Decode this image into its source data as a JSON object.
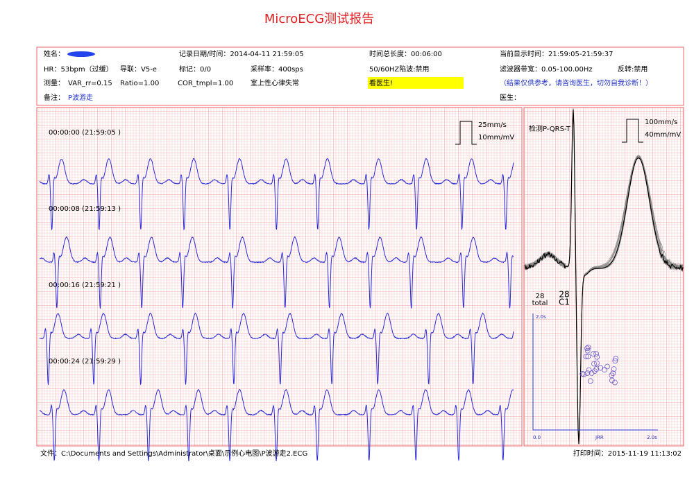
{
  "title": "MicroECG测试报告",
  "header": {
    "name_label": "姓名：",
    "record_time": "记录日期/时间：2014-04-11 21:59:05",
    "duration": "时间总长度：00:06:00",
    "display_time": "当前显示时间：21:59:05-21:59:37",
    "hr": "HR：53bpm（过缓）",
    "lead": "导联：V5-e",
    "marks": "标记：0/0",
    "sample_rate": "采样率：400sps",
    "notch": "50/60HZ陷波:禁用",
    "filter": "滤波器带宽：0.05-100.00Hz",
    "invert": "反转:禁用",
    "measure_label": "测量：",
    "var_rr": "VAR_rr=0.15",
    "ratio": "Ratio=1.00",
    "cor_tmpl": "COR_tmpl=1.00",
    "diagnosis": "室上性心律失常",
    "advice": "看医生!",
    "disclaimer": "（结果仅供参考，请咨询医生，切勿自我诊断！）",
    "remark_label": "备注：",
    "remark": "P波游走",
    "doctor_label": "医生："
  },
  "strips": {
    "speed": "25mm/s",
    "gain": "10mm/mV",
    "labels": [
      "00:00:00 (21:59:05 )",
      "00:00:08 (21:59:13 )",
      "00:00:16 (21:59:21 )",
      "00:00:24 (21:59:29 )"
    ]
  },
  "template": {
    "title": "检测P-QRS-T",
    "speed": "100mm/s",
    "gain": "40mm/mV",
    "total_count": "28",
    "total_label": "total",
    "cluster_count": "28",
    "cluster_label": "C1"
  },
  "scatter": {
    "y_max": "2.0s",
    "x_min": "0.0",
    "x_label": "JRR",
    "x_max": "2.0s"
  },
  "footer": {
    "file": "文件：C:\\Documents and Settings\\Administrator\\桌面\\示例心电图\\P波游走2.ECG",
    "print_time": "打印时间：2015-11-19 11:13:02"
  }
}
